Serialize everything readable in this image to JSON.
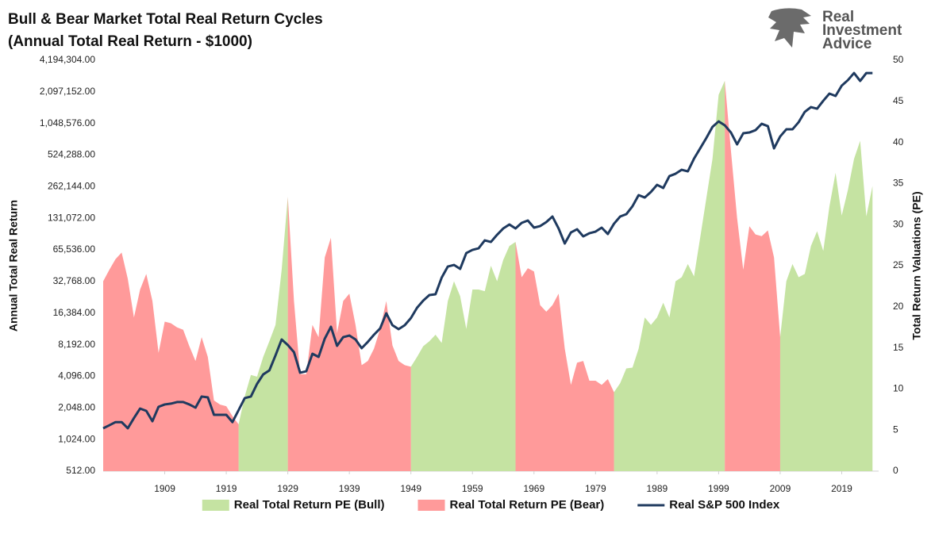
{
  "logo": {
    "lines": [
      "Real",
      "Investment",
      "Advice"
    ]
  },
  "chart_data": {
    "type": "line",
    "title": "Bull & Bear Market Total Real Return Cycles",
    "subtitle": "(Annual Total Real Return - $1000)",
    "y_label": "Annual Total Real Return",
    "y2_label": "Total Return Valuations (PE)",
    "yscale": "log",
    "grid": false,
    "legend": "bottom",
    "x": [
      1899,
      1900,
      1901,
      1902,
      1903,
      1904,
      1905,
      1906,
      1907,
      1908,
      1909,
      1910,
      1911,
      1912,
      1913,
      1914,
      1915,
      1916,
      1917,
      1918,
      1919,
      1920,
      1921,
      1922,
      1923,
      1924,
      1925,
      1926,
      1927,
      1928,
      1929,
      1930,
      1931,
      1932,
      1933,
      1934,
      1935,
      1936,
      1937,
      1938,
      1939,
      1940,
      1941,
      1942,
      1943,
      1944,
      1945,
      1946,
      1947,
      1948,
      1949,
      1950,
      1951,
      1952,
      1953,
      1954,
      1955,
      1956,
      1957,
      1958,
      1959,
      1960,
      1961,
      1962,
      1963,
      1964,
      1965,
      1966,
      1967,
      1968,
      1969,
      1970,
      1971,
      1972,
      1973,
      1974,
      1975,
      1976,
      1977,
      1978,
      1979,
      1980,
      1981,
      1982,
      1983,
      1984,
      1985,
      1986,
      1987,
      1988,
      1989,
      1990,
      1991,
      1992,
      1993,
      1994,
      1995,
      1996,
      1997,
      1998,
      1999,
      2000,
      2001,
      2002,
      2003,
      2004,
      2005,
      2006,
      2007,
      2008,
      2009,
      2010,
      2011,
      2012,
      2013,
      2014,
      2015,
      2016,
      2017,
      2018,
      2019,
      2020,
      2021,
      2022,
      2023,
      2024
    ],
    "xlim": [
      1899,
      2025
    ],
    "xticks": [
      1909,
      1919,
      1929,
      1939,
      1949,
      1959,
      1969,
      1979,
      1989,
      1999,
      2009,
      2019
    ],
    "ylim": [
      512,
      4194304
    ],
    "yticks": [
      {
        "value": 512,
        "label": "512.00"
      },
      {
        "value": 1024,
        "label": "1,024.00"
      },
      {
        "value": 2048,
        "label": "2,048.00"
      },
      {
        "value": 4096,
        "label": "4,096.00"
      },
      {
        "value": 8192,
        "label": "8,192.00"
      },
      {
        "value": 16384,
        "label": "16,384.00"
      },
      {
        "value": 32768,
        "label": "32,768.00"
      },
      {
        "value": 65536,
        "label": "65,536.00"
      },
      {
        "value": 131072,
        "label": "131,072.00"
      },
      {
        "value": 262144,
        "label": "262,144.00"
      },
      {
        "value": 524288,
        "label": "524,288.00"
      },
      {
        "value": 1048576,
        "label": "1,048,576.00"
      },
      {
        "value": 2097152,
        "label": "2,097,152.00"
      },
      {
        "value": 4194304,
        "label": "4,194,304.00"
      }
    ],
    "y2lim": [
      0,
      50
    ],
    "y2ticks": [
      0,
      5,
      10,
      15,
      20,
      25,
      30,
      35,
      40,
      45,
      50
    ],
    "series": [
      {
        "name": "Real Total Return PE (Bull)",
        "type": "area",
        "axis": "y2",
        "color": "#c5e3a2",
        "values": [
          null,
          null,
          null,
          null,
          null,
          null,
          null,
          null,
          null,
          null,
          null,
          null,
          null,
          null,
          null,
          null,
          null,
          null,
          null,
          null,
          null,
          null,
          5.7,
          9.1,
          11.7,
          11.5,
          13.9,
          15.8,
          17.8,
          24.5,
          33.4,
          null,
          null,
          null,
          null,
          null,
          null,
          null,
          null,
          null,
          null,
          null,
          null,
          null,
          null,
          null,
          null,
          null,
          null,
          null,
          12.7,
          13.9,
          15.2,
          15.8,
          16.6,
          15.6,
          20.7,
          23.1,
          21.3,
          17.3,
          22.1,
          22.1,
          21.9,
          25.0,
          23.1,
          25.7,
          27.4,
          27.9,
          null,
          null,
          null,
          null,
          null,
          null,
          null,
          null,
          null,
          null,
          null,
          null,
          null,
          null,
          null,
          9.6,
          10.7,
          12.5,
          12.6,
          14.9,
          18.7,
          17.8,
          18.7,
          20.5,
          18.7,
          23.1,
          23.6,
          25.2,
          23.7,
          28.4,
          33.2,
          38.0,
          45.8,
          47.5,
          null,
          null,
          null,
          null,
          null,
          null,
          null,
          null,
          16.3,
          23.1,
          25.2,
          23.6,
          24.0,
          27.4,
          29.2,
          26.8,
          32.2,
          36.3,
          31.1,
          34.2,
          38.0,
          40.2,
          31.0,
          34.7
        ]
      },
      {
        "name": "Real Total Return PE (Bear)",
        "type": "area",
        "axis": "y2",
        "color": "#ff9a9a",
        "values": [
          23.1,
          24.5,
          25.8,
          26.6,
          23.4,
          18.7,
          22.1,
          24.0,
          20.7,
          14.4,
          18.2,
          18.0,
          17.5,
          17.2,
          15.2,
          13.4,
          16.3,
          13.9,
          8.6,
          8.1,
          7.9,
          6.7,
          5.7,
          null,
          null,
          null,
          null,
          null,
          null,
          null,
          33.4,
          20.7,
          11.8,
          11.8,
          17.8,
          16.3,
          26.0,
          28.4,
          16.8,
          20.7,
          21.6,
          17.8,
          12.9,
          13.4,
          14.9,
          17.3,
          20.7,
          15.3,
          13.4,
          12.9,
          12.7,
          null,
          null,
          null,
          null,
          null,
          null,
          null,
          null,
          null,
          null,
          null,
          null,
          null,
          null,
          null,
          null,
          27.9,
          23.6,
          24.7,
          24.3,
          20.2,
          19.4,
          20.2,
          21.6,
          14.9,
          10.5,
          13.2,
          13.4,
          11.0,
          11.0,
          10.5,
          11.2,
          9.6,
          null,
          null,
          null,
          null,
          null,
          null,
          null,
          null,
          null,
          null,
          null,
          null,
          null,
          null,
          null,
          null,
          null,
          47.5,
          39.0,
          30.8,
          24.5,
          29.8,
          28.8,
          28.6,
          29.3,
          26.0,
          16.3,
          null,
          null,
          null,
          null,
          null,
          null,
          null,
          null,
          null,
          null,
          null,
          null,
          null,
          null,
          null
        ]
      },
      {
        "name": "Real S&P 500 Index",
        "type": "line",
        "axis": "y",
        "color": "#1f3a5f",
        "values": [
          1310,
          1400,
          1500,
          1500,
          1310,
          1640,
          2020,
          1920,
          1530,
          2100,
          2210,
          2250,
          2330,
          2330,
          2210,
          2060,
          2630,
          2580,
          1760,
          1760,
          1760,
          1500,
          1950,
          2540,
          2630,
          3470,
          4270,
          4660,
          6490,
          9190,
          8140,
          6960,
          4430,
          4580,
          6720,
          6270,
          9350,
          12140,
          8000,
          9680,
          10020,
          9190,
          7590,
          8720,
          10200,
          11720,
          16320,
          12570,
          11520,
          12570,
          14690,
          18420,
          21550,
          24340,
          24770,
          35690,
          45520,
          47120,
          43200,
          61180,
          65590,
          67890,
          80790,
          78030,
          91290,
          104900,
          114400,
          104900,
          118500,
          124900,
          106800,
          110500,
          120600,
          136200,
          104900,
          75420,
          96150,
          103100,
          88170,
          94520,
          97840,
          106800,
          92880,
          116400,
          136200,
          143500,
          170700,
          217900,
          206700,
          233500,
          273100,
          254800,
          330600,
          348300,
          380100,
          367100,
          484800,
          607700,
          762400,
          972300,
          1097700,
          1006600,
          860700,
          663000,
          845800,
          860700,
          906800,
          1041900,
          989200,
          607700,
          789000,
          922600,
          922600,
          1078800,
          1353200,
          1501700,
          1450500,
          1726000,
          2018800,
          1916400,
          2402800,
          2712600,
          3171800,
          2665500,
          3171800,
          3171800
        ]
      }
    ]
  }
}
